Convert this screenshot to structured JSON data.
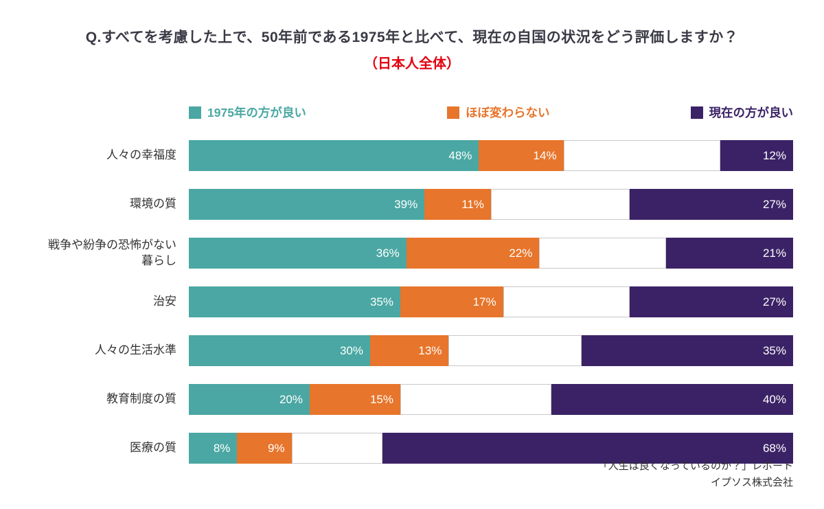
{
  "header": {
    "title": "Q.すべてを考慮した上で、50年前である1975年と比べて、現在の自国の状況をどう評価しますか？",
    "subtitle": "（日本人全体）"
  },
  "theme": {
    "teal": "#4aa7a3",
    "orange": "#e7752b",
    "purple": "#3b2266",
    "red": "#e4000f",
    "gap_border": "#c8c8c8",
    "title_color": "#3a3a46"
  },
  "legend": [
    {
      "label": "1975年の方が良い",
      "color": "#4aa7a3"
    },
    {
      "label": "ほぼ変わらない",
      "color": "#e7752b"
    },
    {
      "label": "現在の方が良い",
      "color": "#3b2266"
    }
  ],
  "chart_data": {
    "type": "bar",
    "orientation": "horizontal",
    "stacked": true,
    "xlim": [
      0,
      100
    ],
    "value_suffix": "%",
    "legend_position": "top",
    "grid": false,
    "note": "Third series is right-aligned to 100%; the unlabeled white gap is the remainder (no answer).",
    "series_names": [
      "1975年の方が良い",
      "ほぼ変わらない",
      "現在の方が良い"
    ],
    "categories": [
      "人々の幸福度",
      "環境の質",
      "戦争や紛争の恐怖がない暮らし",
      "治安",
      "人々の生活水準",
      "教育制度の質",
      "医療の質"
    ],
    "series": [
      {
        "name": "1975年の方が良い",
        "values": [
          48,
          39,
          36,
          35,
          30,
          20,
          8
        ]
      },
      {
        "name": "ほぼ変わらない",
        "values": [
          14,
          11,
          22,
          17,
          13,
          15,
          9
        ]
      },
      {
        "name": "現在の方が良い",
        "values": [
          12,
          27,
          21,
          27,
          35,
          40,
          68
        ]
      }
    ],
    "rows": [
      {
        "label": "人々の幸福度",
        "values": {
          "a": 48,
          "b": 14,
          "c": 12
        },
        "labels": {
          "a": "48%",
          "b": "14%",
          "c": "12%"
        }
      },
      {
        "label": "環境の質",
        "values": {
          "a": 39,
          "b": 11,
          "c": 27
        },
        "labels": {
          "a": "39%",
          "b": "11%",
          "c": "27%"
        }
      },
      {
        "label": "戦争や紛争の恐怖がない\n暮らし",
        "values": {
          "a": 36,
          "b": 22,
          "c": 21
        },
        "labels": {
          "a": "36%",
          "b": "22%",
          "c": "21%"
        }
      },
      {
        "label": "治安",
        "values": {
          "a": 35,
          "b": 17,
          "c": 27
        },
        "labels": {
          "a": "35%",
          "b": "17%",
          "c": "27%"
        }
      },
      {
        "label": "人々の生活水準",
        "values": {
          "a": 30,
          "b": 13,
          "c": 35
        },
        "labels": {
          "a": "30%",
          "b": "13%",
          "c": "35%"
        }
      },
      {
        "label": "教育制度の質",
        "values": {
          "a": 20,
          "b": 15,
          "c": 40
        },
        "labels": {
          "a": "20%",
          "b": "15%",
          "c": "40%"
        }
      },
      {
        "label": "医療の質",
        "values": {
          "a": 8,
          "b": 9,
          "c": 68
        },
        "labels": {
          "a": "8%",
          "b": "9%",
          "c": "68%"
        }
      }
    ]
  },
  "footer": {
    "line1": "「人生は良くなっているのか？」レポート",
    "line2": "イプソス株式会社"
  }
}
